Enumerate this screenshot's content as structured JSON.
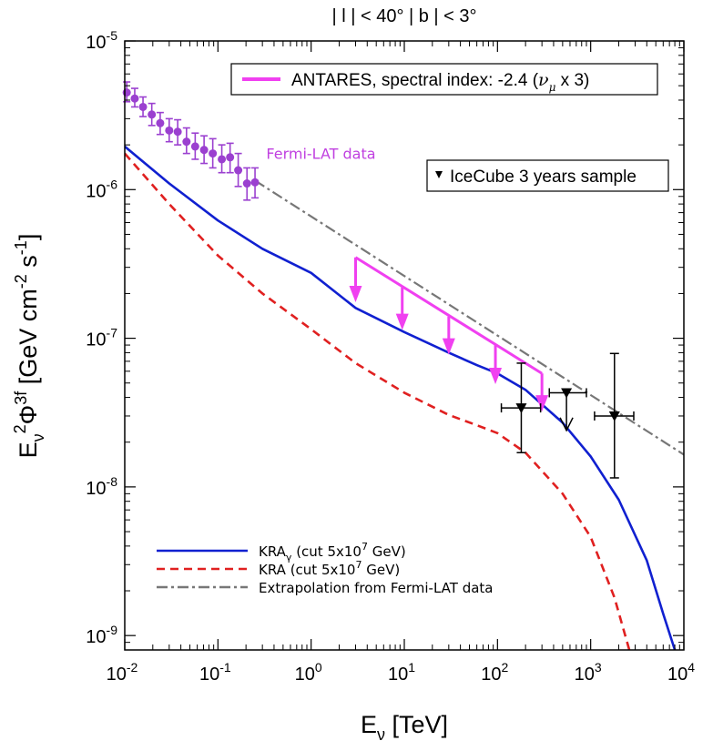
{
  "chart_data": {
    "type": "line",
    "title": "| l | < 40°   | b | < 3°",
    "xlabel": {
      "main": "E",
      "sub": "ν",
      "unit": " [TeV]"
    },
    "ylabel": {
      "main": "E",
      "sub": "ν",
      "sup": "2",
      "phi": "Φ",
      "phisup": "3f",
      "unit": " [GeV cm",
      "unitsup1": "-2",
      "unit2": " s",
      "unitsup2": "-1",
      "unit3": "]"
    },
    "xscale": "log",
    "yscale": "log",
    "xlim": [
      0.01,
      10000
    ],
    "ylim": [
      8e-10,
      1e-05
    ],
    "x_ticks": [
      {
        "value": 0.01,
        "base": "10",
        "exp": "-2"
      },
      {
        "value": 0.1,
        "base": "10",
        "exp": "-1"
      },
      {
        "value": 1,
        "base": "10",
        "exp": "0"
      },
      {
        "value": 10,
        "base": "10",
        "exp": "1"
      },
      {
        "value": 100,
        "base": "10",
        "exp": "2"
      },
      {
        "value": 1000,
        "base": "10",
        "exp": "3"
      },
      {
        "value": 10000,
        "base": "10",
        "exp": "4"
      }
    ],
    "y_ticks": [
      {
        "value": 1e-09,
        "base": "10",
        "exp": "-9"
      },
      {
        "value": 1e-08,
        "base": "10",
        "exp": "-8"
      },
      {
        "value": 1e-07,
        "base": "10",
        "exp": "-7"
      },
      {
        "value": 1e-06,
        "base": "10",
        "exp": "-6"
      },
      {
        "value": 1e-05,
        "base": "10",
        "exp": "-5"
      }
    ],
    "series": [
      {
        "name": "KRAγ (cut 5x10⁷ GeV)",
        "color": "#1020d0",
        "style": "solid",
        "points": [
          [
            0.01,
            1.95e-06
          ],
          [
            0.03,
            1.1e-06
          ],
          [
            0.1,
            6.2e-07
          ],
          [
            0.3,
            4e-07
          ],
          [
            1,
            2.75e-07
          ],
          [
            3,
            1.6e-07
          ],
          [
            10,
            1.1e-07
          ],
          [
            30,
            8e-08
          ],
          [
            60,
            6.6e-08
          ],
          [
            100,
            5.8e-08
          ],
          [
            200,
            4.5e-08
          ],
          [
            500,
            2.7e-08
          ],
          [
            1000,
            1.6e-08
          ],
          [
            2000,
            8.2e-09
          ],
          [
            4000,
            3.2e-09
          ],
          [
            6000,
            1.4e-09
          ],
          [
            8000,
            8e-10
          ]
        ]
      },
      {
        "name": "KRA (cut 5x10⁷ GeV)",
        "color": "#e02020",
        "style": "dashed",
        "points": [
          [
            0.01,
            1.75e-06
          ],
          [
            0.03,
            8e-07
          ],
          [
            0.1,
            3.6e-07
          ],
          [
            0.3,
            2e-07
          ],
          [
            1,
            1.15e-07
          ],
          [
            3,
            6.8e-08
          ],
          [
            10,
            4.3e-08
          ],
          [
            30,
            3.05e-08
          ],
          [
            60,
            2.6e-08
          ],
          [
            100,
            2.3e-08
          ],
          [
            200,
            1.7e-08
          ],
          [
            500,
            9e-09
          ],
          [
            1000,
            4.6e-09
          ],
          [
            1800,
            1.8e-09
          ],
          [
            2600,
            8e-10
          ]
        ]
      },
      {
        "name": "Extrapolation from Fermi-LAT data",
        "color": "#777777",
        "style": "dashdot",
        "points": [
          [
            0.25,
            1.15e-06
          ],
          [
            10000,
            1.65e-08
          ]
        ]
      }
    ],
    "fermi_lat": {
      "label": "Fermi-LAT data",
      "color": "#9b40d0",
      "points": [
        {
          "x": 0.0105,
          "y": 4.5e-06,
          "lo": 3.9e-06,
          "hi": 5.3e-06
        },
        {
          "x": 0.0128,
          "y": 4.1e-06,
          "lo": 3.6e-06,
          "hi": 4.8e-06
        },
        {
          "x": 0.0157,
          "y": 3.6e-06,
          "lo": 3.1e-06,
          "hi": 4.2e-06
        },
        {
          "x": 0.0195,
          "y": 3.2e-06,
          "lo": 2.7e-06,
          "hi": 3.8e-06
        },
        {
          "x": 0.024,
          "y": 2.8e-06,
          "lo": 2.35e-06,
          "hi": 3.3e-06
        },
        {
          "x": 0.03,
          "y": 2.5e-06,
          "lo": 2.1e-06,
          "hi": 3e-06
        },
        {
          "x": 0.037,
          "y": 2.45e-06,
          "lo": 2e-06,
          "hi": 2.95e-06
        },
        {
          "x": 0.046,
          "y": 2.1e-06,
          "lo": 1.75e-06,
          "hi": 2.6e-06
        },
        {
          "x": 0.057,
          "y": 1.95e-06,
          "lo": 1.6e-06,
          "hi": 2.4e-06
        },
        {
          "x": 0.071,
          "y": 1.85e-06,
          "lo": 1.5e-06,
          "hi": 2.3e-06
        },
        {
          "x": 0.088,
          "y": 1.75e-06,
          "lo": 1.4e-06,
          "hi": 2.2e-06
        },
        {
          "x": 0.11,
          "y": 1.6e-06,
          "lo": 1.3e-06,
          "hi": 2e-06
        },
        {
          "x": 0.135,
          "y": 1.65e-06,
          "lo": 1.3e-06,
          "hi": 2.05e-06
        },
        {
          "x": 0.165,
          "y": 1.35e-06,
          "lo": 1.05e-06,
          "hi": 1.75e-06
        },
        {
          "x": 0.205,
          "y": 1.1e-06,
          "lo": 8.5e-07,
          "hi": 1.4e-06
        },
        {
          "x": 0.25,
          "y": 1.12e-06,
          "lo": 8.8e-07,
          "hi": 1.4e-06
        }
      ]
    },
    "antares": {
      "label": "ANTARES, spectral index: -2.4 (νμ x 3)",
      "color": "#f040f0",
      "line": [
        [
          3,
          3.5e-07
        ],
        [
          300,
          5.8e-08
        ]
      ],
      "arrows": [
        {
          "x": 3,
          "from": 3.5e-07,
          "to": 1.85e-07
        },
        {
          "x": 9.5,
          "from": 2.2e-07,
          "to": 1.2e-07
        },
        {
          "x": 30,
          "from": 1.4e-07,
          "to": 8.2e-08
        },
        {
          "x": 95,
          "from": 9e-08,
          "to": 5.2e-08
        },
        {
          "x": 300,
          "from": 5.8e-08,
          "to": 3.4e-08
        }
      ]
    },
    "icecube": {
      "label": "IceCube 3 years sample",
      "color": "#000000",
      "points": [
        {
          "x": 180,
          "y": 3.4e-08,
          "xlo": 110,
          "xhi": 290,
          "lo": 1.7e-08,
          "hi": 6.8e-08
        },
        {
          "x": 1800,
          "y": 3e-08,
          "xlo": 1100,
          "xhi": 2900,
          "lo": 1.15e-08,
          "hi": 7.9e-08
        }
      ],
      "upper_limits": [
        {
          "x": 550,
          "y": 4.3e-08,
          "xlo": 360,
          "xhi": 900,
          "to": 2.4e-08
        }
      ]
    },
    "legend_antares": {
      "text": "ANTARES, spectral index: -2.4 (",
      "nu": "ν",
      "sub": "μ",
      "tail": " x 3)"
    },
    "legend_icecube": "IceCube 3 years sample",
    "legend_lower": [
      {
        "text": "KRA",
        "sub": "γ",
        "tail": " (cut 5x10",
        "sup": "7",
        "end": " GeV)",
        "color": "#1020d0",
        "style": "solid"
      },
      {
        "text": "KRA",
        "sub": "",
        "tail": " (cut 5x10",
        "sup": "7",
        "end": " GeV)",
        "color": "#e02020",
        "style": "dashed"
      },
      {
        "text": "Extrapolation from Fermi-LAT data",
        "sub": "",
        "tail": "",
        "sup": "",
        "end": "",
        "color": "#777777",
        "style": "dashdot"
      }
    ]
  }
}
